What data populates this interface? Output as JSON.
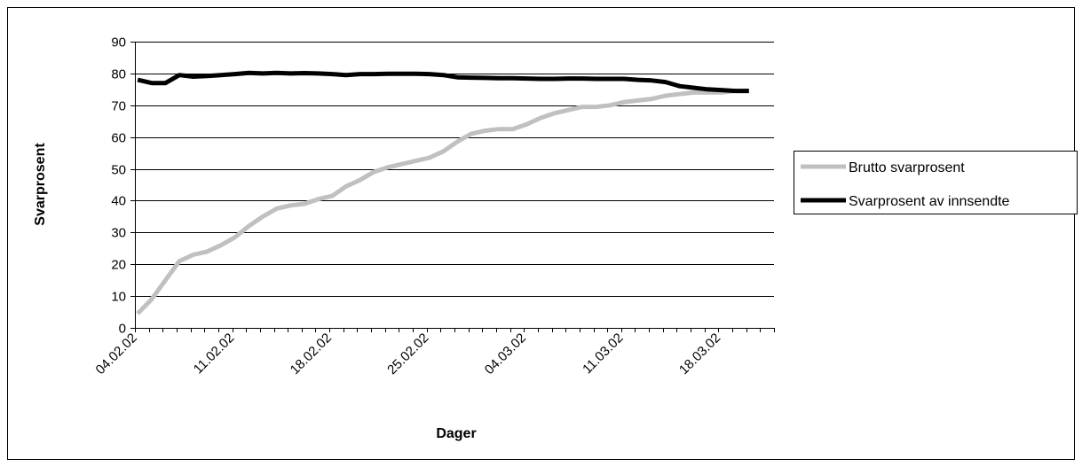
{
  "chart_data": {
    "type": "line",
    "title": "",
    "xlabel": "Dager",
    "ylabel": "Svarprosent",
    "ylim": [
      0,
      90
    ],
    "yticks": [
      "0",
      "10",
      "20",
      "30",
      "40",
      "50",
      "60",
      "70",
      "80",
      "90"
    ],
    "xticks": [
      "04.02.02",
      "11.02.02",
      "18.02.02",
      "25.02.02",
      "04.03.02",
      "11.03.02",
      "18.03.02"
    ],
    "xlim": [
      "04.02.02",
      "22.03.02"
    ],
    "x": [
      "04.02.02",
      "05.02.02",
      "06.02.02",
      "07.02.02",
      "08.02.02",
      "09.02.02",
      "10.02.02",
      "11.02.02",
      "12.02.02",
      "13.02.02",
      "14.02.02",
      "15.02.02",
      "16.02.02",
      "17.02.02",
      "18.02.02",
      "19.02.02",
      "20.02.02",
      "21.02.02",
      "22.02.02",
      "23.02.02",
      "24.02.02",
      "25.02.02",
      "26.02.02",
      "27.02.02",
      "28.02.02",
      "01.03.02",
      "02.03.02",
      "03.03.02",
      "04.03.02",
      "05.03.02",
      "06.03.02",
      "07.03.02",
      "08.03.02",
      "09.03.02",
      "10.03.02",
      "11.03.02",
      "12.03.02",
      "13.03.02",
      "14.03.02",
      "15.03.02",
      "16.03.02",
      "17.03.02",
      "18.03.02",
      "19.03.02",
      "20.03.02"
    ],
    "series": [
      {
        "name": "Brutto svarprosent",
        "color": "#c0c0c0",
        "values": [
          4.5,
          9,
          15,
          21,
          23,
          24,
          26,
          28.5,
          32,
          35,
          37.5,
          38.5,
          39,
          40.5,
          41.5,
          44.5,
          46.5,
          49,
          50.5,
          51.5,
          52.5,
          53.5,
          55.5,
          58.5,
          61,
          62,
          62.5,
          62.5,
          64,
          66,
          67.5,
          68.5,
          69.5,
          69.5,
          70,
          71,
          71.5,
          72,
          73,
          73.5,
          74,
          74,
          74,
          74.5,
          74.5
        ]
      },
      {
        "name": "Svarprosent av innsendte",
        "color": "#000000",
        "values": [
          78,
          77,
          77,
          79.5,
          79,
          79.2,
          79.5,
          79.8,
          80.2,
          80,
          80.2,
          80,
          80.1,
          80,
          79.8,
          79.5,
          79.8,
          79.8,
          79.9,
          79.9,
          79.9,
          79.8,
          79.5,
          78.8,
          78.7,
          78.6,
          78.5,
          78.5,
          78.4,
          78.3,
          78.3,
          78.4,
          78.4,
          78.3,
          78.3,
          78.3,
          78,
          77.8,
          77.3,
          76,
          75.5,
          75,
          74.8,
          74.5,
          74.5
        ]
      }
    ],
    "legend_position": "right",
    "grid": true
  }
}
